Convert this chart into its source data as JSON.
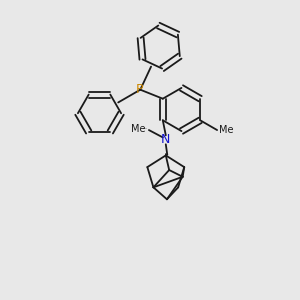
{
  "background_color": "#e8e8e8",
  "line_color": "#1a1a1a",
  "P_color": "#cc8800",
  "N_color": "#1111cc",
  "line_width": 1.3,
  "figsize": [
    3.0,
    3.0
  ],
  "dpi": 100,
  "xlim": [
    0,
    10
  ],
  "ylim": [
    0,
    10
  ]
}
